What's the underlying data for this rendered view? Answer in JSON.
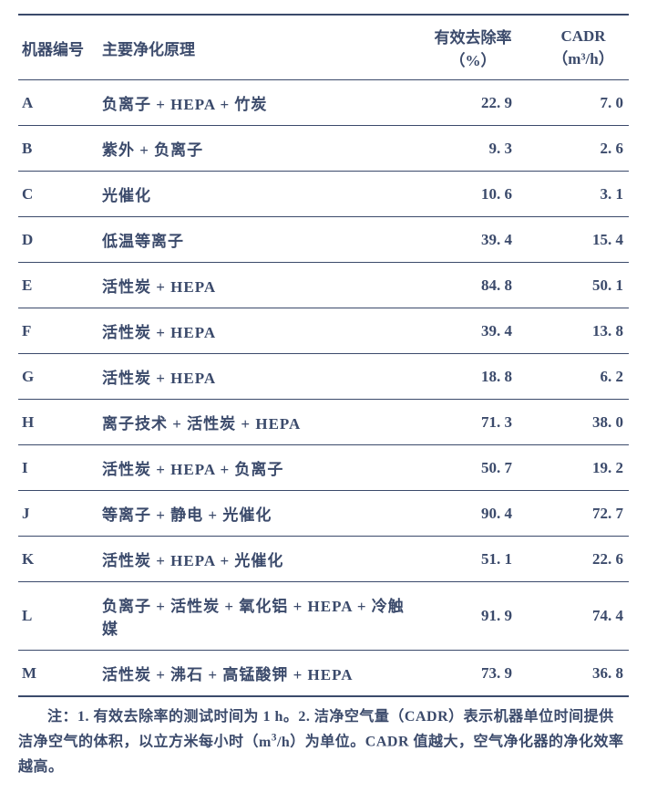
{
  "table": {
    "headers": {
      "id": "机器编号",
      "principle": "主要净化原理",
      "rate_l1": "有效去除率",
      "rate_l2": "（%）",
      "cadr_l1": "CADR",
      "cadr_l2": "（m³/h）"
    },
    "rows": [
      {
        "id": "A",
        "principle": "负离子 + HEPA + 竹炭",
        "rate": "22. 9",
        "cadr": "7. 0"
      },
      {
        "id": "B",
        "principle": "紫外 + 负离子",
        "rate": "9. 3",
        "cadr": "2. 6"
      },
      {
        "id": "C",
        "principle": "光催化",
        "rate": "10. 6",
        "cadr": "3. 1"
      },
      {
        "id": "D",
        "principle": "低温等离子",
        "rate": "39. 4",
        "cadr": "15. 4"
      },
      {
        "id": "E",
        "principle": "活性炭 + HEPA",
        "rate": "84. 8",
        "cadr": "50. 1"
      },
      {
        "id": "F",
        "principle": "活性炭 + HEPA",
        "rate": "39. 4",
        "cadr": "13. 8"
      },
      {
        "id": "G",
        "principle": "活性炭 + HEPA",
        "rate": "18. 8",
        "cadr": "6. 2"
      },
      {
        "id": "H",
        "principle": "离子技术 + 活性炭 + HEPA",
        "rate": "71. 3",
        "cadr": "38. 0"
      },
      {
        "id": "I",
        "principle": "活性炭 + HEPA + 负离子",
        "rate": "50. 7",
        "cadr": "19. 2"
      },
      {
        "id": "J",
        "principle": "等离子 + 静电 + 光催化",
        "rate": "90. 4",
        "cadr": "72. 7"
      },
      {
        "id": "K",
        "principle": "活性炭 + HEPA + 光催化",
        "rate": "51. 1",
        "cadr": "22. 6"
      },
      {
        "id": "L",
        "principle": "负离子 + 活性炭 + 氧化铝 + HEPA + 冷触媒",
        "rate": "91. 9",
        "cadr": "74. 4"
      },
      {
        "id": "M",
        "principle": "活性炭 + 沸石 + 高锰酸钾 + HEPA",
        "rate": "73. 9",
        "cadr": "36. 8"
      }
    ]
  },
  "footnote": "注：1. 有效去除率的测试时间为 1 h。2. 洁净空气量（CADR）表示机器单位时间提供洁净空气的体积，以立方米每小时（m³/h）为单位。CADR 值越大，空气净化器的净化效率越高。"
}
